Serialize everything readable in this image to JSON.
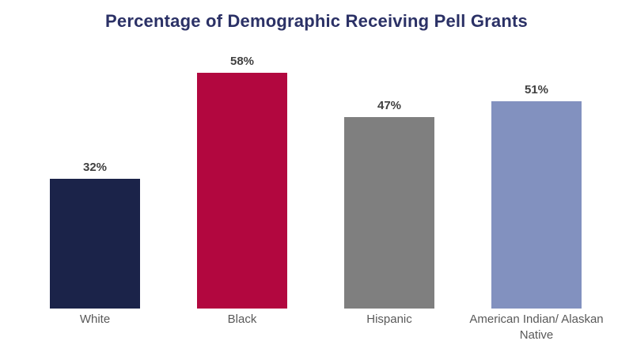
{
  "chart_data": {
    "type": "bar",
    "title": "Percentage of Demographic Receiving Pell Grants",
    "categories": [
      "White",
      "Black",
      "Hispanic",
      "American Indian/ Alaskan Native"
    ],
    "values": [
      32,
      58,
      47,
      51
    ],
    "value_labels": [
      "32%",
      "58%",
      "47%",
      "51%"
    ],
    "bar_colors": [
      "#1b2349",
      "#b2073f",
      "#7f7f7f",
      "#8291bf"
    ],
    "xlabel": "",
    "ylabel": "",
    "ylim": [
      0,
      65
    ],
    "grid": false,
    "legend": "none",
    "axes_hidden": true
  },
  "style": {
    "background_color": "#ffffff",
    "title_color": "#2b3166",
    "value_label_color": "#404040",
    "category_label_color": "#595959"
  }
}
